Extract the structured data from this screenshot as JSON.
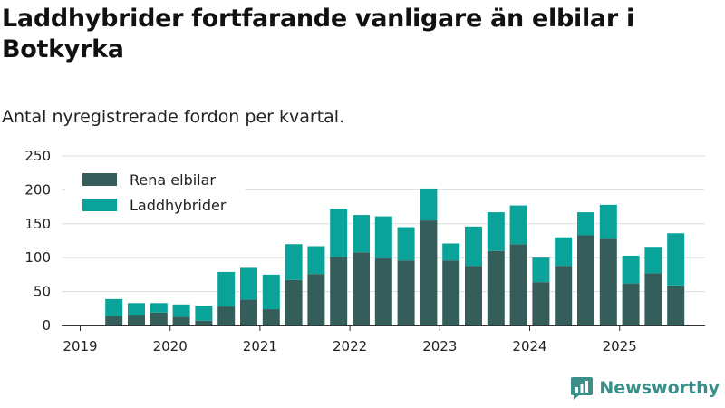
{
  "header": {
    "title": "Laddhybrider fortfarande vanligare än elbilar i Botkyrka",
    "subtitle": "Antal nyregistrerade fordon per kvartal."
  },
  "brand": {
    "name": "Newsworthy"
  },
  "colors": {
    "electric": "#355e5b",
    "hybrid": "#0aa39a",
    "grid": "#dddddd",
    "axis": "#333333",
    "brand": "#3a8f8a"
  },
  "chart_data": {
    "type": "bar",
    "stacked": true,
    "x": [
      "2019-Q2",
      "2019-Q3",
      "2019-Q4",
      "2020-Q1",
      "2020-Q2",
      "2020-Q3",
      "2020-Q4",
      "2021-Q1",
      "2021-Q2",
      "2021-Q3",
      "2021-Q4",
      "2022-Q1",
      "2022-Q2",
      "2022-Q3",
      "2022-Q4",
      "2023-Q1",
      "2023-Q2",
      "2023-Q3",
      "2023-Q4",
      "2024-Q1",
      "2024-Q2",
      "2024-Q3",
      "2024-Q4",
      "2025-Q1",
      "2025-Q2",
      "2025-Q3"
    ],
    "series": [
      {
        "name": "Rena elbilar",
        "values": [
          14,
          16,
          19,
          13,
          7,
          28,
          38,
          24,
          67,
          76,
          101,
          108,
          99,
          96,
          155,
          96,
          88,
          110,
          120,
          64,
          88,
          133,
          128,
          62,
          77,
          59
        ]
      },
      {
        "name": "Laddhybrider",
        "values": [
          25,
          17,
          14,
          18,
          22,
          51,
          47,
          51,
          53,
          41,
          71,
          55,
          62,
          49,
          47,
          25,
          58,
          57,
          57,
          36,
          42,
          34,
          50,
          41,
          39,
          77
        ]
      }
    ],
    "year_ticks": [
      "2019",
      "2020",
      "2021",
      "2022",
      "2023",
      "2024",
      "2025"
    ],
    "y_ticks": [
      0,
      50,
      100,
      150,
      200,
      250
    ],
    "ylim": [
      0,
      250
    ],
    "xlabel": "",
    "ylabel": "",
    "grid": true,
    "legend": {
      "position": "top-left",
      "entries": [
        "Rena elbilar",
        "Laddhybrider"
      ]
    }
  }
}
